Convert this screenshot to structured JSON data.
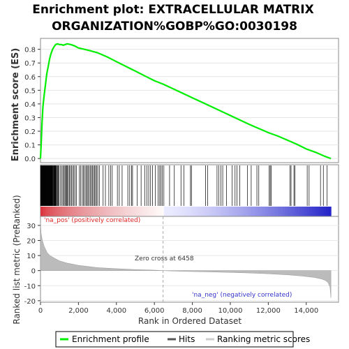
{
  "title": {
    "line1": "Enrichment plot: EXTRACELLULAR MATRIX",
    "line2": "ORGANIZATION%GOBP%GO:0030198"
  },
  "chart_data": [
    {
      "type": "line",
      "panel": "enrichment",
      "ylabel": "Enrichment score (ES)",
      "xlim": [
        0,
        15700
      ],
      "ylim": [
        -0.03,
        0.88
      ],
      "yticks": [
        "0.0",
        "0.1",
        "0.2",
        "0.3",
        "0.4",
        "0.5",
        "0.6",
        "0.7",
        "0.8"
      ],
      "grid": true,
      "color": "#00ee00",
      "series": [
        {
          "name": "Enrichment profile",
          "x": [
            0,
            40,
            80,
            130,
            200,
            260,
            330,
            400,
            480,
            560,
            640,
            720,
            800,
            900,
            1000,
            1100,
            1200,
            1300,
            1400,
            1600,
            1800,
            2000,
            2300,
            2600,
            3000,
            3500,
            4000,
            4500,
            5000,
            5500,
            6000,
            6458,
            7000,
            8000,
            9000,
            10000,
            11000,
            12000,
            12500,
            13000,
            13500,
            14000,
            14500,
            15000,
            15300
          ],
          "y": [
            0.0,
            0.12,
            0.26,
            0.38,
            0.47,
            0.54,
            0.62,
            0.67,
            0.73,
            0.77,
            0.8,
            0.82,
            0.835,
            0.84,
            0.835,
            0.835,
            0.83,
            0.835,
            0.84,
            0.835,
            0.825,
            0.81,
            0.8,
            0.79,
            0.775,
            0.745,
            0.71,
            0.675,
            0.64,
            0.605,
            0.57,
            0.545,
            0.51,
            0.445,
            0.38,
            0.315,
            0.25,
            0.19,
            0.165,
            0.135,
            0.105,
            0.07,
            0.045,
            0.015,
            0.0
          ]
        }
      ]
    },
    {
      "type": "scatter",
      "panel": "hits",
      "xlim": [
        0,
        15700
      ],
      "color": "#000000",
      "series": [
        {
          "name": "Hits",
          "x": [
            5,
            20,
            35,
            50,
            65,
            80,
            95,
            110,
            125,
            140,
            155,
            170,
            185,
            200,
            215,
            230,
            245,
            260,
            275,
            290,
            305,
            320,
            335,
            350,
            365,
            380,
            395,
            410,
            425,
            440,
            455,
            470,
            485,
            500,
            520,
            540,
            560,
            580,
            600,
            620,
            640,
            660,
            680,
            700,
            720,
            740,
            760,
            780,
            800,
            830,
            860,
            900,
            940,
            980,
            1050,
            1120,
            1180,
            1240,
            1290,
            1330,
            1380,
            1420,
            1470,
            1520,
            1580,
            1640,
            1700,
            1760,
            1830,
            1900,
            2050,
            2120,
            2200,
            2260,
            2320,
            2390,
            2440,
            2500,
            2560,
            2620,
            2680,
            2730,
            2790,
            2850,
            2900,
            2960,
            3020,
            3100,
            3300,
            3420,
            3600,
            3700,
            3780,
            4050,
            4150,
            4300,
            4600,
            4700,
            4800,
            4850,
            5100,
            5300,
            5500,
            5600,
            5700,
            5800,
            5900,
            6050,
            6200,
            6280,
            6350,
            6420,
            6500,
            6800,
            7050,
            7400,
            7550,
            7900,
            7950,
            8700,
            8800,
            9300,
            9400,
            9500,
            9600,
            9800,
            10100,
            10250,
            10350,
            10500,
            10900,
            11100,
            11400,
            11500,
            12050,
            12100,
            12150,
            13150,
            13200,
            13350,
            13400,
            14050,
            14150,
            14750,
            14900,
            15100
          ]
        }
      ]
    },
    {
      "type": "area",
      "panel": "ranked-metric",
      "xlabel": "Rank in Ordered Dataset",
      "ylabel": "Ranked list metric (PreRanked)",
      "xlim": [
        0,
        15700
      ],
      "ylim": [
        -21,
        36
      ],
      "xticks": [
        "0",
        "2,000",
        "4,000",
        "6,000",
        "8,000",
        "10,000",
        "12,000",
        "14,000"
      ],
      "yticks": [
        "-20",
        "-10",
        "0",
        "10",
        "20",
        "30"
      ],
      "grid": true,
      "color": "#bbbbbb",
      "zero_cross": 6458,
      "series": [
        {
          "name": "Ranking metric scores",
          "x": [
            0,
            30,
            100,
            200,
            350,
            500,
            700,
            1000,
            1400,
            2000,
            3000,
            4000,
            5000,
            6000,
            6458,
            7000,
            8000,
            9000,
            10000,
            11000,
            12000,
            13000,
            13800,
            14400,
            14800,
            15000,
            15150,
            15250,
            15300
          ],
          "y": [
            32,
            25,
            20,
            16,
            12,
            10,
            8.5,
            6.5,
            5,
            3.5,
            2,
            1.3,
            0.7,
            0.3,
            0,
            -0.3,
            -0.6,
            -0.9,
            -1.2,
            -1.6,
            -2.1,
            -2.8,
            -3.6,
            -4.5,
            -5.5,
            -6.5,
            -8,
            -11,
            -18
          ]
        }
      ]
    }
  ],
  "annotations": {
    "na_pos": "'na_pos' (positively correlated)",
    "na_neg": "'na_neg' (negatively correlated)",
    "zero_cross": "Zero cross at 6458"
  },
  "colors": {
    "enrichment_line": "#00ee00",
    "na_pos": "#dd2222",
    "na_neg": "#3333cc",
    "metric_fill": "#bbbbbb"
  },
  "legend": {
    "items": [
      {
        "label": "Enrichment profile",
        "color": "#00ee00"
      },
      {
        "label": "Hits",
        "color": "#555555"
      },
      {
        "label": "Ranking metric scores",
        "color": "#cccccc"
      }
    ]
  }
}
